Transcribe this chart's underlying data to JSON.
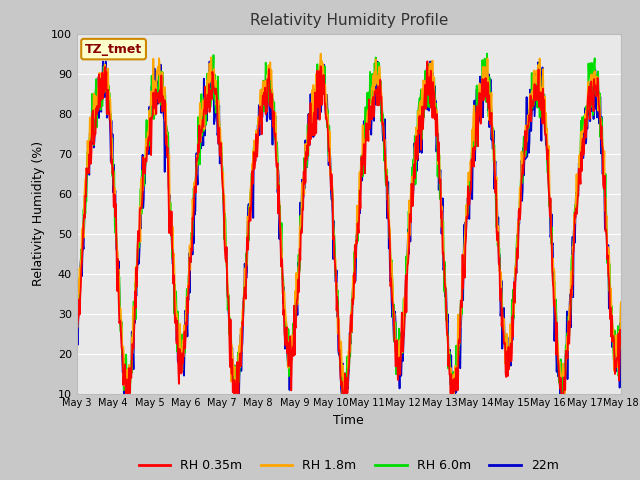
{
  "title": "Relativity Humidity Profile",
  "xlabel": "Time",
  "ylabel": "Relativity Humidity (%)",
  "ylim": [
    10,
    100
  ],
  "yticks": [
    10,
    20,
    30,
    40,
    50,
    60,
    70,
    80,
    90,
    100
  ],
  "series_colors": [
    "#ff0000",
    "#ffa500",
    "#00dd00",
    "#0000cc"
  ],
  "series_labels": [
    "RH 0.35m",
    "RH 1.8m",
    "RH 6.0m",
    "22m"
  ],
  "line_width": 1.3,
  "plot_bg_color": "#e8e8e8",
  "fig_bg_color": "#c8c8c8",
  "annotation_text": "TZ_tmet",
  "annotation_bg": "#ffffcc",
  "annotation_border": "#cc8800",
  "annotation_text_color": "#880000",
  "x_tick_labels": [
    "May 3",
    "May 4",
    "May 5",
    "May 6",
    "May 7",
    "May 8",
    "May 9",
    "May 10",
    "May 11",
    "May 12",
    "May 13",
    "May 14",
    "May 15",
    "May 16",
    "May 17",
    "May 18"
  ],
  "grid_color": "#ffffff",
  "num_points": 960
}
